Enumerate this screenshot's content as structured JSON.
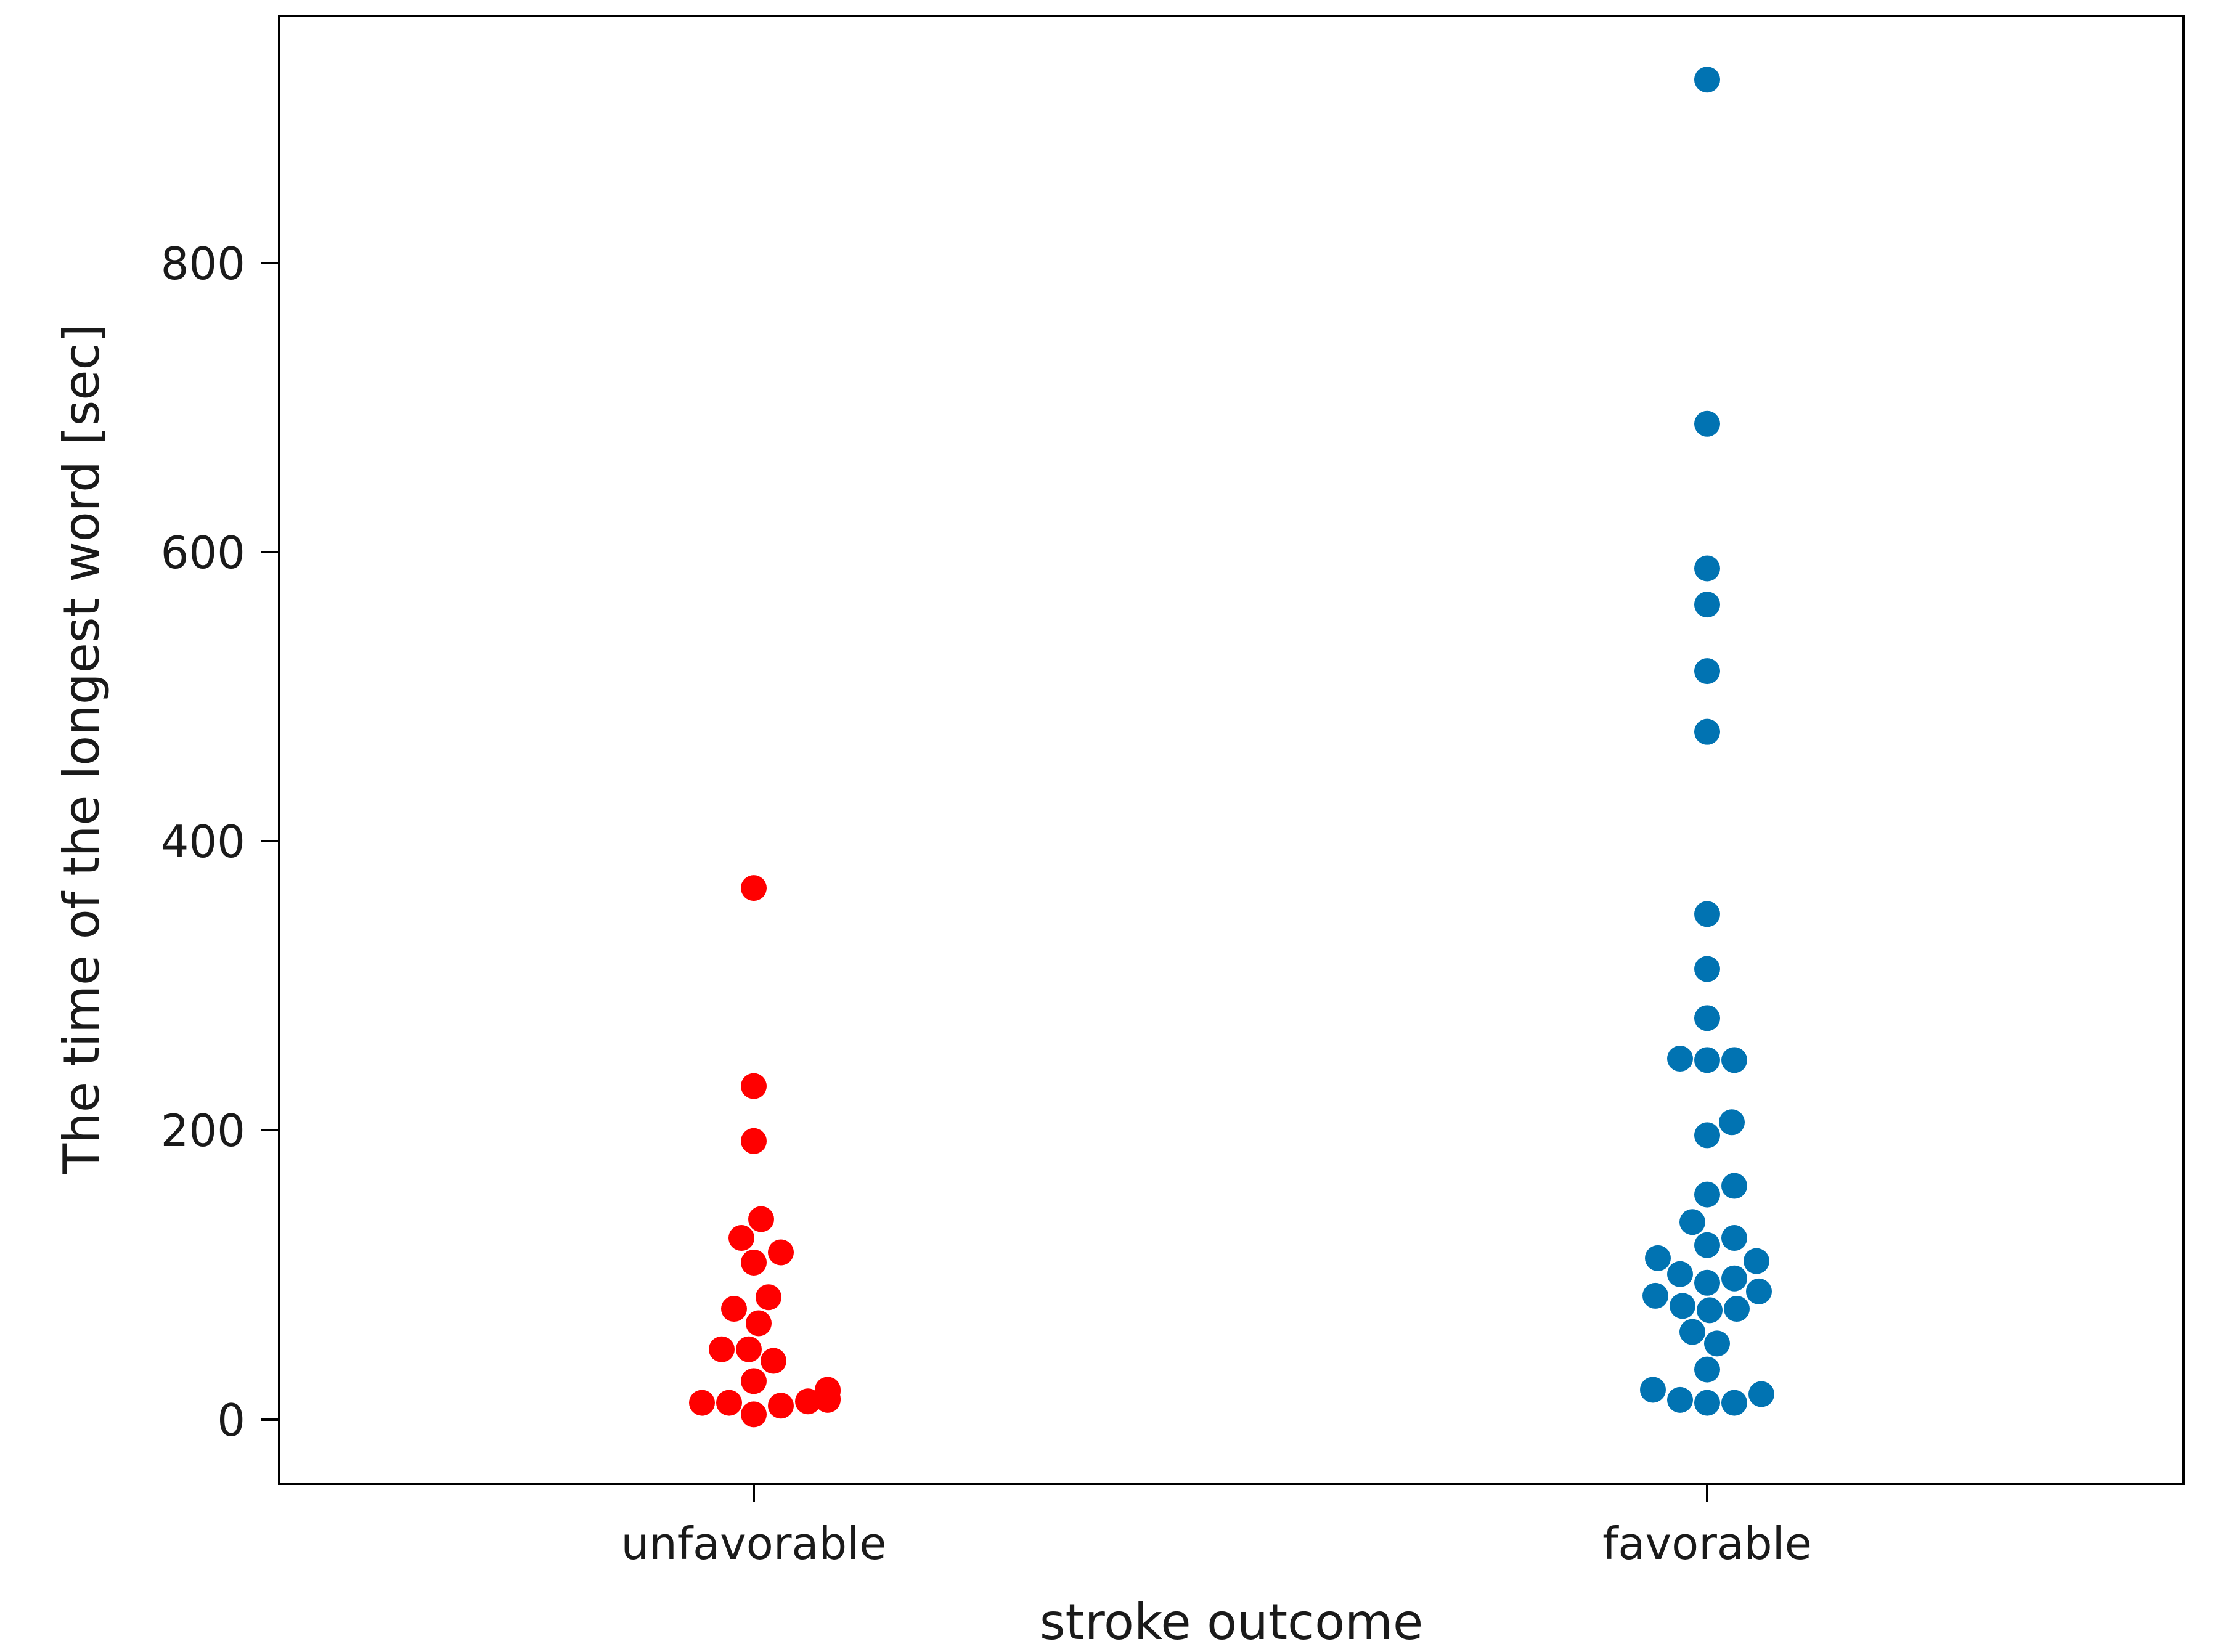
{
  "chart_data": {
    "type": "scatter",
    "subtype": "swarm",
    "xlabel": "stroke outcome",
    "ylabel": "The time of the longest word [sec]",
    "categories": [
      "unfavorable",
      "favorable"
    ],
    "yticks": [
      0,
      200,
      400,
      600,
      800
    ],
    "ylim": [
      -45,
      970
    ],
    "grid": false,
    "legend": "none",
    "series": [
      {
        "category": "unfavorable",
        "color": "#ff0000",
        "values": [
          367,
          230,
          192,
          138,
          125,
          115,
          108,
          84,
          76,
          66,
          48,
          48,
          40,
          26,
          19,
          20,
          14,
          13,
          12,
          11,
          11,
          9,
          3
        ]
      },
      {
        "category": "favorable",
        "color": "#0173b2",
        "values": [
          926,
          688,
          588,
          563,
          517,
          475,
          349,
          311,
          277,
          249,
          248,
          248,
          205,
          196,
          161,
          155,
          136,
          125,
          120,
          111,
          109,
          100,
          97,
          94,
          88,
          85,
          78,
          76,
          75,
          60,
          52,
          34,
          20,
          17,
          13,
          11,
          11
        ]
      }
    ]
  }
}
